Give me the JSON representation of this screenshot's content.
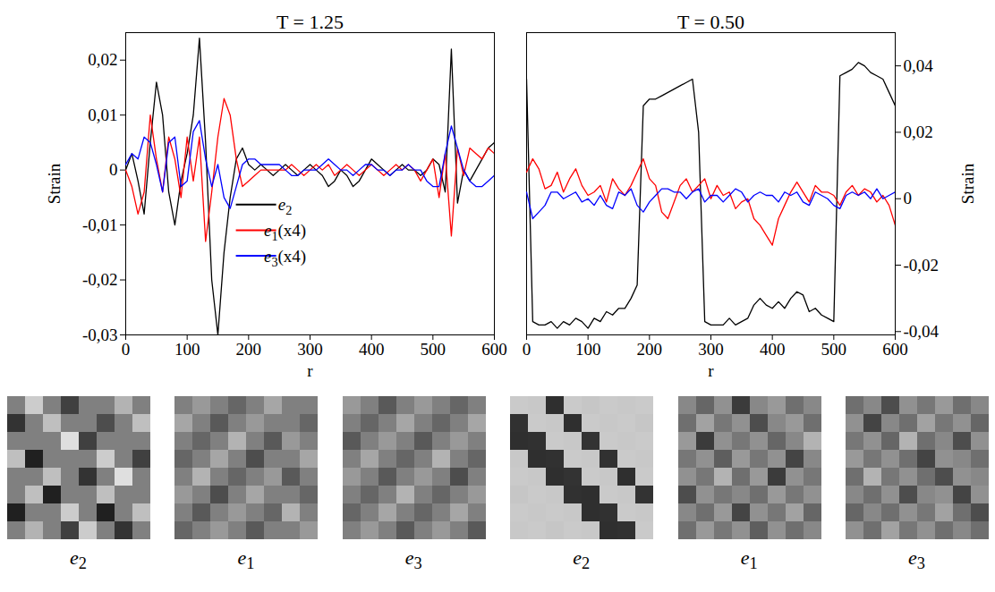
{
  "chart_data": [
    {
      "type": "line",
      "title": "T = 1.25",
      "xlabel": "r",
      "ylabel": "Strain",
      "legend": "center",
      "x": [
        0,
        10,
        20,
        30,
        40,
        50,
        60,
        70,
        80,
        90,
        100,
        110,
        120,
        130,
        140,
        150,
        160,
        170,
        180,
        190,
        200,
        210,
        220,
        230,
        240,
        250,
        260,
        270,
        280,
        290,
        300,
        310,
        320,
        330,
        340,
        350,
        360,
        370,
        380,
        390,
        400,
        410,
        420,
        430,
        440,
        450,
        460,
        470,
        480,
        490,
        500,
        510,
        520,
        530,
        540,
        550,
        560,
        570,
        580,
        590,
        600
      ],
      "xlim": [
        0,
        600
      ],
      "xticks": [
        0,
        100,
        200,
        300,
        400,
        500,
        600
      ],
      "ylim": [
        -0.03,
        0.025
      ],
      "yticks": [
        {
          "value": -0.03,
          "label": "-0,03"
        },
        {
          "value": -0.02,
          "label": "-0,02"
        },
        {
          "value": -0.01,
          "label": "-0,01"
        },
        0,
        {
          "value": 0.01,
          "label": "0,01"
        },
        {
          "value": 0.02,
          "label": "0,02"
        }
      ],
      "series": [
        {
          "name": "e2",
          "color": "#000000",
          "values": [
            0,
            0.003,
            -0.002,
            -0.008,
            0.005,
            0.016,
            0.01,
            -0.004,
            -0.01,
            -0.002,
            0.003,
            0.01,
            0.024,
            0.005,
            -0.02,
            -0.03,
            -0.015,
            -0.005,
            0.002,
            0.004,
            0.001,
            0,
            0.001,
            0,
            -0.001,
            0,
            0.001,
            0,
            -0.001,
            0,
            0.001,
            0,
            -0.001,
            -0.003,
            -0.002,
            0,
            -0.001,
            -0.003,
            -0.002,
            0,
            0.002,
            0.001,
            0,
            -0.001,
            0,
            0.001,
            0,
            0,
            -0.001,
            0,
            0.002,
            0.001,
            -0.004,
            0.022,
            -0.006,
            0,
            -0.002,
            0,
            0.002,
            0.004,
            0.005
          ]
        },
        {
          "name": "e1(x4)",
          "color": "#ff0000",
          "values": [
            0,
            -0.003,
            -0.008,
            -0.004,
            0.01,
            0.002,
            -0.004,
            0.006,
            0.002,
            -0.005,
            0.006,
            -0.002,
            0.006,
            -0.013,
            -0.004,
            0.006,
            0.013,
            0.01,
            0.002,
            -0.003,
            -0.002,
            -0.001,
            0,
            0,
            0,
            0,
            0,
            0.001,
            0,
            -0.001,
            0,
            0.001,
            0,
            0.001,
            -0.001,
            0,
            0.001,
            0,
            -0.001,
            0,
            0.001,
            0,
            -0.001,
            0,
            0.001,
            0,
            0.001,
            0,
            -0.002,
            0,
            0.002,
            -0.005,
            0.003,
            -0.012,
            0.004,
            -0.001,
            0.004,
            0.003,
            0.002,
            0.004,
            0.003
          ]
        },
        {
          "name": "e3(x4)",
          "color": "#0000ff",
          "values": [
            0.001,
            0.003,
            0.002,
            0.006,
            0.005,
            0.001,
            -0.004,
            0.005,
            0.006,
            -0.003,
            -0.002,
            0.007,
            0.009,
            0.002,
            -0.003,
            0.001,
            -0.005,
            -0.007,
            -0.003,
            0.001,
            0.002,
            0.002,
            0.001,
            0.001,
            0.001,
            0.001,
            0,
            -0.001,
            -0.001,
            0,
            0,
            0,
            0.001,
            0.002,
            0.001,
            0,
            0,
            -0.001,
            0,
            0.001,
            0.001,
            0,
            0,
            -0.001,
            0,
            0,
            0.001,
            0,
            0,
            -0.002,
            -0.003,
            -0.003,
            0.003,
            0.008,
            0.004,
            0,
            -0.002,
            -0.003,
            -0.003,
            -0.002,
            -0.001
          ]
        }
      ]
    },
    {
      "type": "line",
      "title": "T = 0.50",
      "xlabel": "r",
      "ylabel": "Strain",
      "x": [
        0,
        10,
        20,
        30,
        40,
        50,
        60,
        70,
        80,
        90,
        100,
        110,
        120,
        130,
        140,
        150,
        160,
        170,
        180,
        190,
        200,
        210,
        220,
        230,
        240,
        250,
        260,
        270,
        280,
        290,
        300,
        310,
        320,
        330,
        340,
        350,
        360,
        370,
        380,
        390,
        400,
        410,
        420,
        430,
        440,
        450,
        460,
        470,
        480,
        490,
        500,
        510,
        520,
        530,
        540,
        550,
        560,
        570,
        580,
        590,
        600
      ],
      "xlim": [
        0,
        600
      ],
      "xticks": [
        0,
        100,
        200,
        300,
        400,
        500,
        600
      ],
      "y2lim": [
        -0.041,
        0.05
      ],
      "y2ticks": [
        {
          "value": -0.04,
          "label": "-0,04"
        },
        {
          "value": -0.02,
          "label": "-0,02"
        },
        0,
        {
          "value": 0.02,
          "label": "0,02"
        },
        {
          "value": 0.04,
          "label": "0,04"
        }
      ],
      "series": [
        {
          "name": "e2",
          "color": "#000000",
          "axis": "y2",
          "values": [
            0.036,
            -0.037,
            -0.038,
            -0.038,
            -0.037,
            -0.039,
            -0.037,
            -0.038,
            -0.036,
            -0.037,
            -0.039,
            -0.036,
            -0.037,
            -0.034,
            -0.035,
            -0.033,
            -0.033,
            -0.03,
            -0.026,
            0.028,
            0.03,
            0.03,
            0.031,
            0.032,
            0.033,
            0.034,
            0.035,
            0.036,
            0.02,
            -0.037,
            -0.038,
            -0.038,
            -0.038,
            -0.036,
            -0.038,
            -0.037,
            -0.036,
            -0.032,
            -0.03,
            -0.032,
            -0.033,
            -0.031,
            -0.033,
            -0.03,
            -0.028,
            -0.029,
            -0.034,
            -0.033,
            -0.035,
            -0.036,
            -0.037,
            0.037,
            0.038,
            0.039,
            0.041,
            0.04,
            0.038,
            0.037,
            0.036,
            0.032,
            0.028
          ]
        },
        {
          "name": "e1(x4)",
          "color": "#ff0000",
          "axis": "y2",
          "values": [
            0.008,
            0.012,
            0.009,
            0.003,
            0.004,
            0.008,
            0.002,
            0.006,
            0.009,
            0.004,
            0.001,
            0.002,
            0.004,
            -0.001,
            0.006,
            0.003,
            0.001,
            0.004,
            0.008,
            0.012,
            0.006,
            0.004,
            -0.004,
            -0.006,
            -0.001,
            0.004,
            0.006,
            0.002,
            0.004,
            0.006,
            0,
            0.004,
            0.001,
            0.002,
            -0.003,
            -0.001,
            0,
            -0.006,
            -0.008,
            -0.011,
            -0.014,
            -0.006,
            -0.002,
            0.002,
            0.005,
            0.002,
            -0.001,
            0.004,
            0.002,
            0.002,
            0.001,
            -0.002,
            0.002,
            0.004,
            0.001,
            0.003,
            0.002,
            -0.001,
            0.001,
            -0.002,
            -0.008
          ]
        },
        {
          "name": "e3(x4)",
          "color": "#0000ff",
          "axis": "y2",
          "values": [
            0.002,
            -0.006,
            -0.004,
            -0.002,
            0.002,
            0.002,
            0,
            0.001,
            0.002,
            -0.001,
            0,
            -0.002,
            0.001,
            -0.002,
            -0.003,
            0.002,
            0.001,
            0.003,
            -0.002,
            -0.004,
            -0.001,
            0.001,
            0.003,
            0.003,
            0.002,
            0.002,
            0,
            0.002,
            0.003,
            -0.001,
            0.001,
            0.001,
            -0.001,
            0.001,
            0.003,
            0.002,
            -0.001,
            0.001,
            0.002,
            0.001,
            0.001,
            -0.001,
            0.002,
            0.001,
            0.002,
            -0.001,
            -0.002,
            0.002,
            0.001,
            0,
            -0.002,
            -0.003,
            0.001,
            0.002,
            0.001,
            0.002,
            0,
            0.003,
            0,
            0.001,
            0.002
          ]
        }
      ]
    },
    {
      "type": "heatmap",
      "xlabel": "e2",
      "tick_labels": false,
      "cell_range": [
        -0.02,
        0.02
      ],
      "cells": [
        [
          0,
          0.012,
          0,
          -0.01,
          0,
          0,
          0.008,
          0
        ],
        [
          -0.012,
          0,
          0.01,
          0,
          0,
          -0.008,
          0,
          0.01
        ],
        [
          0,
          0,
          0,
          0.015,
          -0.01,
          0,
          0,
          0
        ],
        [
          0.01,
          -0.015,
          0,
          0,
          0,
          0.012,
          0,
          -0.01
        ],
        [
          0,
          0,
          0.01,
          0,
          -0.012,
          0,
          0.015,
          0
        ],
        [
          0,
          0.01,
          -0.015,
          0,
          0,
          0.01,
          0,
          0
        ],
        [
          -0.015,
          0,
          0,
          0.012,
          0,
          -0.015,
          0,
          0.01
        ],
        [
          0,
          0.008,
          0,
          -0.01,
          0.012,
          0,
          -0.012,
          0
        ]
      ]
    },
    {
      "type": "heatmap",
      "xlabel": "e1",
      "tick_labels": false,
      "cell_range": [
        -0.01,
        0.01
      ],
      "cells": [
        [
          0,
          0.002,
          0,
          -0.002,
          0,
          0.003,
          0,
          0
        ],
        [
          0.003,
          0,
          -0.003,
          0,
          0.002,
          0,
          0,
          -0.002
        ],
        [
          0,
          -0.002,
          0,
          0.004,
          0,
          -0.003,
          0.002,
          0
        ],
        [
          -0.002,
          0,
          0.003,
          0,
          -0.004,
          0,
          0,
          0.003
        ],
        [
          0,
          0.004,
          0,
          -0.002,
          0,
          0.002,
          -0.003,
          0
        ],
        [
          0.002,
          0,
          -0.004,
          0,
          0.003,
          0,
          0,
          -0.002
        ],
        [
          0,
          -0.003,
          0,
          0.002,
          0,
          -0.002,
          0.004,
          0
        ],
        [
          -0.002,
          0,
          0.002,
          0,
          -0.003,
          0,
          0,
          0.002
        ]
      ]
    },
    {
      "type": "heatmap",
      "xlabel": "e3",
      "tick_labels": false,
      "cell_range": [
        -0.01,
        0.01
      ],
      "cells": [
        [
          0.002,
          0,
          -0.003,
          0,
          0.002,
          0,
          -0.002,
          0
        ],
        [
          0,
          -0.002,
          0,
          0.003,
          0,
          -0.002,
          0,
          0.003
        ],
        [
          -0.003,
          0,
          0.002,
          0,
          -0.003,
          0,
          0.002,
          0
        ],
        [
          0,
          0.003,
          0,
          -0.002,
          0,
          0.004,
          0,
          -0.002
        ],
        [
          0.002,
          0,
          -0.003,
          0,
          0.002,
          0,
          -0.004,
          0
        ],
        [
          0,
          -0.002,
          0,
          0.004,
          0,
          -0.002,
          0,
          0.002
        ],
        [
          -0.002,
          0,
          0.003,
          0,
          -0.002,
          0,
          0.003,
          0
        ],
        [
          0,
          0.002,
          0,
          -0.003,
          0,
          0.002,
          0,
          -0.003
        ]
      ]
    },
    {
      "type": "heatmap",
      "xlabel": "e2",
      "tick_labels": false,
      "cell_range": [
        -0.06,
        0.06
      ],
      "cells": [
        [
          0.035,
          0.034,
          -0.038,
          0.035,
          0.033,
          0.035,
          0.034,
          0.035
        ],
        [
          -0.037,
          0.035,
          0.034,
          -0.038,
          0.035,
          0.034,
          0.035,
          0.033
        ],
        [
          -0.038,
          -0.037,
          0.035,
          0.034,
          -0.036,
          0.035,
          0.034,
          0.035
        ],
        [
          0.034,
          -0.038,
          -0.037,
          0.035,
          0.034,
          -0.037,
          0.035,
          0.034
        ],
        [
          0.035,
          0.034,
          -0.038,
          -0.036,
          0.035,
          0.034,
          -0.038,
          0.035
        ],
        [
          0.033,
          0.035,
          0.034,
          -0.037,
          -0.038,
          0.035,
          0.034,
          -0.036
        ],
        [
          0.035,
          0.034,
          0.035,
          0.034,
          -0.038,
          -0.037,
          0.035,
          0.034
        ],
        [
          0.034,
          0.035,
          0.033,
          0.035,
          0.034,
          -0.038,
          -0.037,
          0.035
        ]
      ]
    },
    {
      "type": "heatmap",
      "xlabel": "e1",
      "tick_labels": false,
      "cell_range": [
        -0.015,
        0.015
      ],
      "cells": [
        [
          0.001,
          -0.003,
          0.002,
          -0.008,
          0.001,
          0.003,
          -0.002,
          0.001
        ],
        [
          -0.002,
          0.004,
          -0.001,
          0.002,
          -0.006,
          0.001,
          0.003,
          -0.002
        ],
        [
          0.003,
          -0.008,
          0.002,
          -0.001,
          0.002,
          -0.003,
          0.001,
          0.006
        ],
        [
          -0.001,
          0.002,
          -0.004,
          0.003,
          -0.001,
          0.002,
          -0.007,
          0.001
        ],
        [
          0.002,
          -0.001,
          0.006,
          -0.002,
          0.003,
          -0.008,
          0.002,
          -0.001
        ],
        [
          -0.006,
          0.002,
          -0.001,
          0.001,
          -0.002,
          0.003,
          -0.001,
          0.002
        ],
        [
          0.001,
          -0.002,
          0.003,
          -0.007,
          0.002,
          -0.001,
          0.004,
          -0.003
        ],
        [
          -0.002,
          0.003,
          -0.001,
          0.002,
          -0.004,
          0.002,
          -0.002,
          0.001
        ]
      ]
    },
    {
      "type": "heatmap",
      "xlabel": "e3",
      "tick_labels": false,
      "cell_range": [
        -0.015,
        0.015
      ],
      "cells": [
        [
          -0.002,
          0.001,
          -0.006,
          0.002,
          -0.001,
          0.003,
          -0.002,
          0.001
        ],
        [
          0.002,
          -0.007,
          0.001,
          -0.002,
          0.004,
          -0.001,
          0.002,
          -0.003
        ],
        [
          -0.001,
          0.002,
          -0.003,
          0.006,
          -0.002,
          0.001,
          -0.006,
          0.002
        ],
        [
          0.003,
          -0.001,
          0.002,
          -0.002,
          -0.007,
          0.002,
          0.001,
          -0.002
        ],
        [
          -0.002,
          0.006,
          -0.001,
          0.002,
          -0.002,
          -0.006,
          0.002,
          0.001
        ],
        [
          0.001,
          -0.002,
          0.002,
          -0.006,
          0.001,
          0.002,
          -0.007,
          0.002
        ],
        [
          -0.003,
          0.001,
          -0.002,
          0.002,
          -0.001,
          0.004,
          -0.002,
          -0.006
        ],
        [
          0.002,
          -0.002,
          0.004,
          -0.001,
          0.002,
          -0.002,
          0.001,
          -0.002
        ]
      ]
    }
  ]
}
